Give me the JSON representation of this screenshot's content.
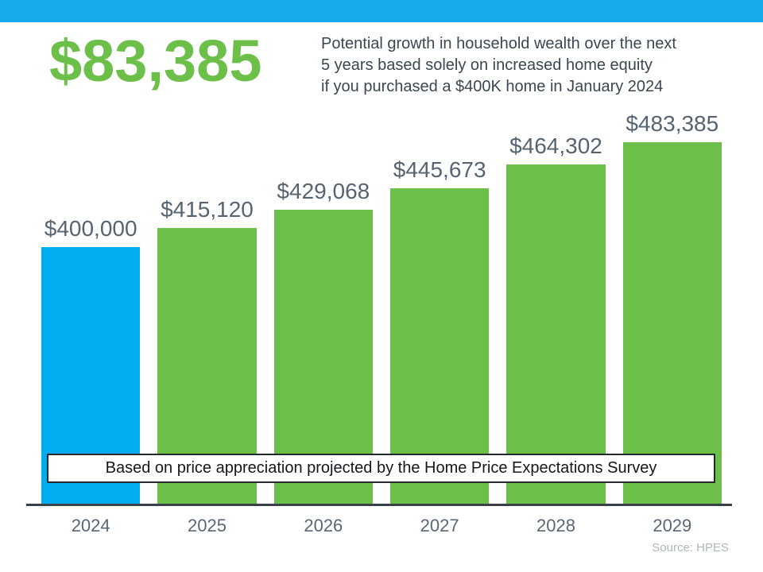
{
  "header": {
    "big_number": "$83,385",
    "description_lines": [
      "Potential growth in household wealth over the next",
      "5 years based solely on increased home equity",
      "if you purchased a $400K home in January 2024"
    ]
  },
  "chart_data": {
    "type": "bar",
    "categories": [
      "2024",
      "2025",
      "2026",
      "2027",
      "2028",
      "2029"
    ],
    "values": [
      400000,
      415120,
      429068,
      445673,
      464302,
      483385
    ],
    "labels": [
      "$400,000",
      "$415,120",
      "$429,068",
      "$445,673",
      "$464,302",
      "$483,385"
    ],
    "bar_colors": [
      "#00AEEF",
      "#6CC04A",
      "#6CC04A",
      "#6CC04A",
      "#6CC04A",
      "#6CC04A"
    ],
    "title": "",
    "xlabel": "",
    "ylabel": "",
    "ylim": [
      200000,
      500000
    ],
    "grid": false,
    "legend": false,
    "value_labels_position": "above-bars"
  },
  "callout": {
    "text": "Based on price appreciation projected by the Home Price Expectations Survey"
  },
  "footer": {
    "source": "Source: HPES"
  },
  "colors": {
    "strip_blue": "#18A9EA",
    "brand_green": "#6CC04A",
    "bar_blue": "#00AEEF",
    "bar_green": "#6CC04A",
    "text_dark": "#3B4750",
    "label_slate": "#566472",
    "tick_slate": "#5B6673",
    "axis_dark": "#3A4047",
    "box_border": "#24292E",
    "box_text": "#14181B",
    "source_gray": "#AFB7BE"
  }
}
